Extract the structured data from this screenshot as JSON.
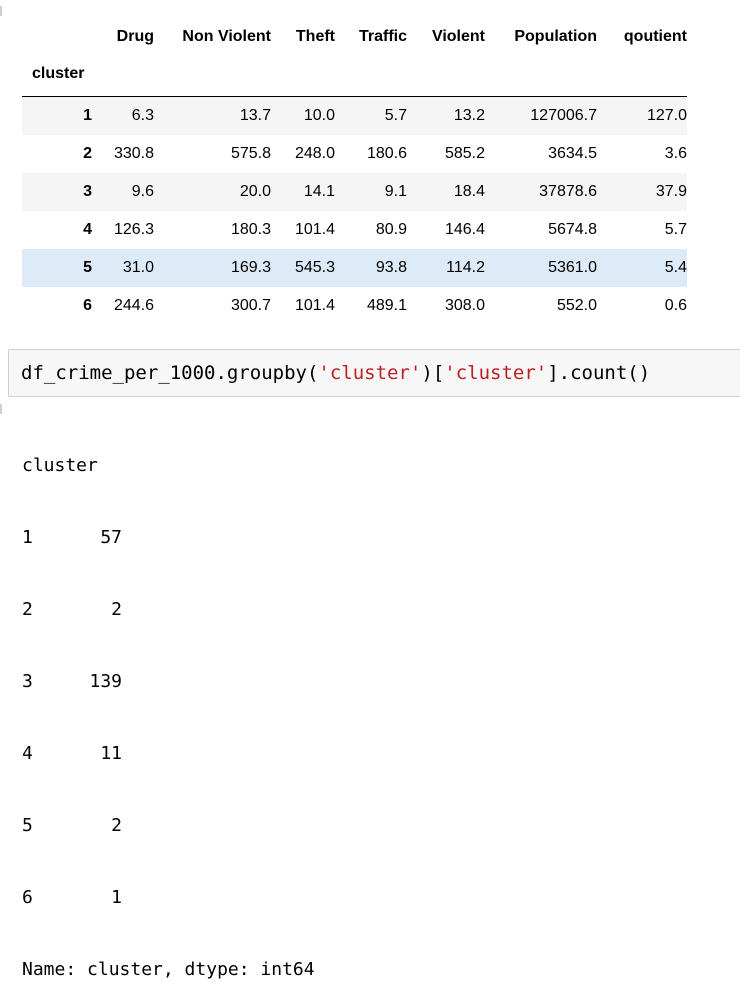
{
  "table": {
    "columns": [
      "Drug",
      "Non Violent",
      "Theft",
      "Traffic",
      "Violent",
      "Population",
      "qoutient"
    ],
    "index_name": "cluster",
    "rows": [
      {
        "index": "1",
        "cells": [
          "6.3",
          "13.7",
          "10.0",
          "5.7",
          "13.2",
          "127006.7",
          "127.0"
        ]
      },
      {
        "index": "2",
        "cells": [
          "330.8",
          "575.8",
          "248.0",
          "180.6",
          "585.2",
          "3634.5",
          "3.6"
        ]
      },
      {
        "index": "3",
        "cells": [
          "9.6",
          "20.0",
          "14.1",
          "9.1",
          "18.4",
          "37878.6",
          "37.9"
        ]
      },
      {
        "index": "4",
        "cells": [
          "126.3",
          "180.3",
          "101.4",
          "80.9",
          "146.4",
          "5674.8",
          "5.7"
        ]
      },
      {
        "index": "5",
        "cells": [
          "31.0",
          "169.3",
          "545.3",
          "93.8",
          "114.2",
          "5361.0",
          "5.4"
        ]
      },
      {
        "index": "6",
        "cells": [
          "244.6",
          "300.7",
          "101.4",
          "489.1",
          "308.0",
          "552.0",
          "0.6"
        ]
      }
    ]
  },
  "code": {
    "part1": "df_crime_per_1000.groupby(",
    "str1": "'cluster'",
    "part2": ")[",
    "str2": "'cluster'",
    "part3": "].count()"
  },
  "output": {
    "header": "cluster",
    "rows": [
      {
        "k": "1",
        "v": "57"
      },
      {
        "k": "2",
        "v": "2"
      },
      {
        "k": "3",
        "v": "139"
      },
      {
        "k": "4",
        "v": "11"
      },
      {
        "k": "5",
        "v": "2"
      },
      {
        "k": "6",
        "v": "1"
      }
    ],
    "footer": "Name: cluster, dtype: int64"
  },
  "colors": {
    "row_stripe": "#f5f5f5",
    "row_hover": "#dcebf7",
    "string_literal": "#ba2121",
    "input_bg": "#f7f7f7"
  }
}
